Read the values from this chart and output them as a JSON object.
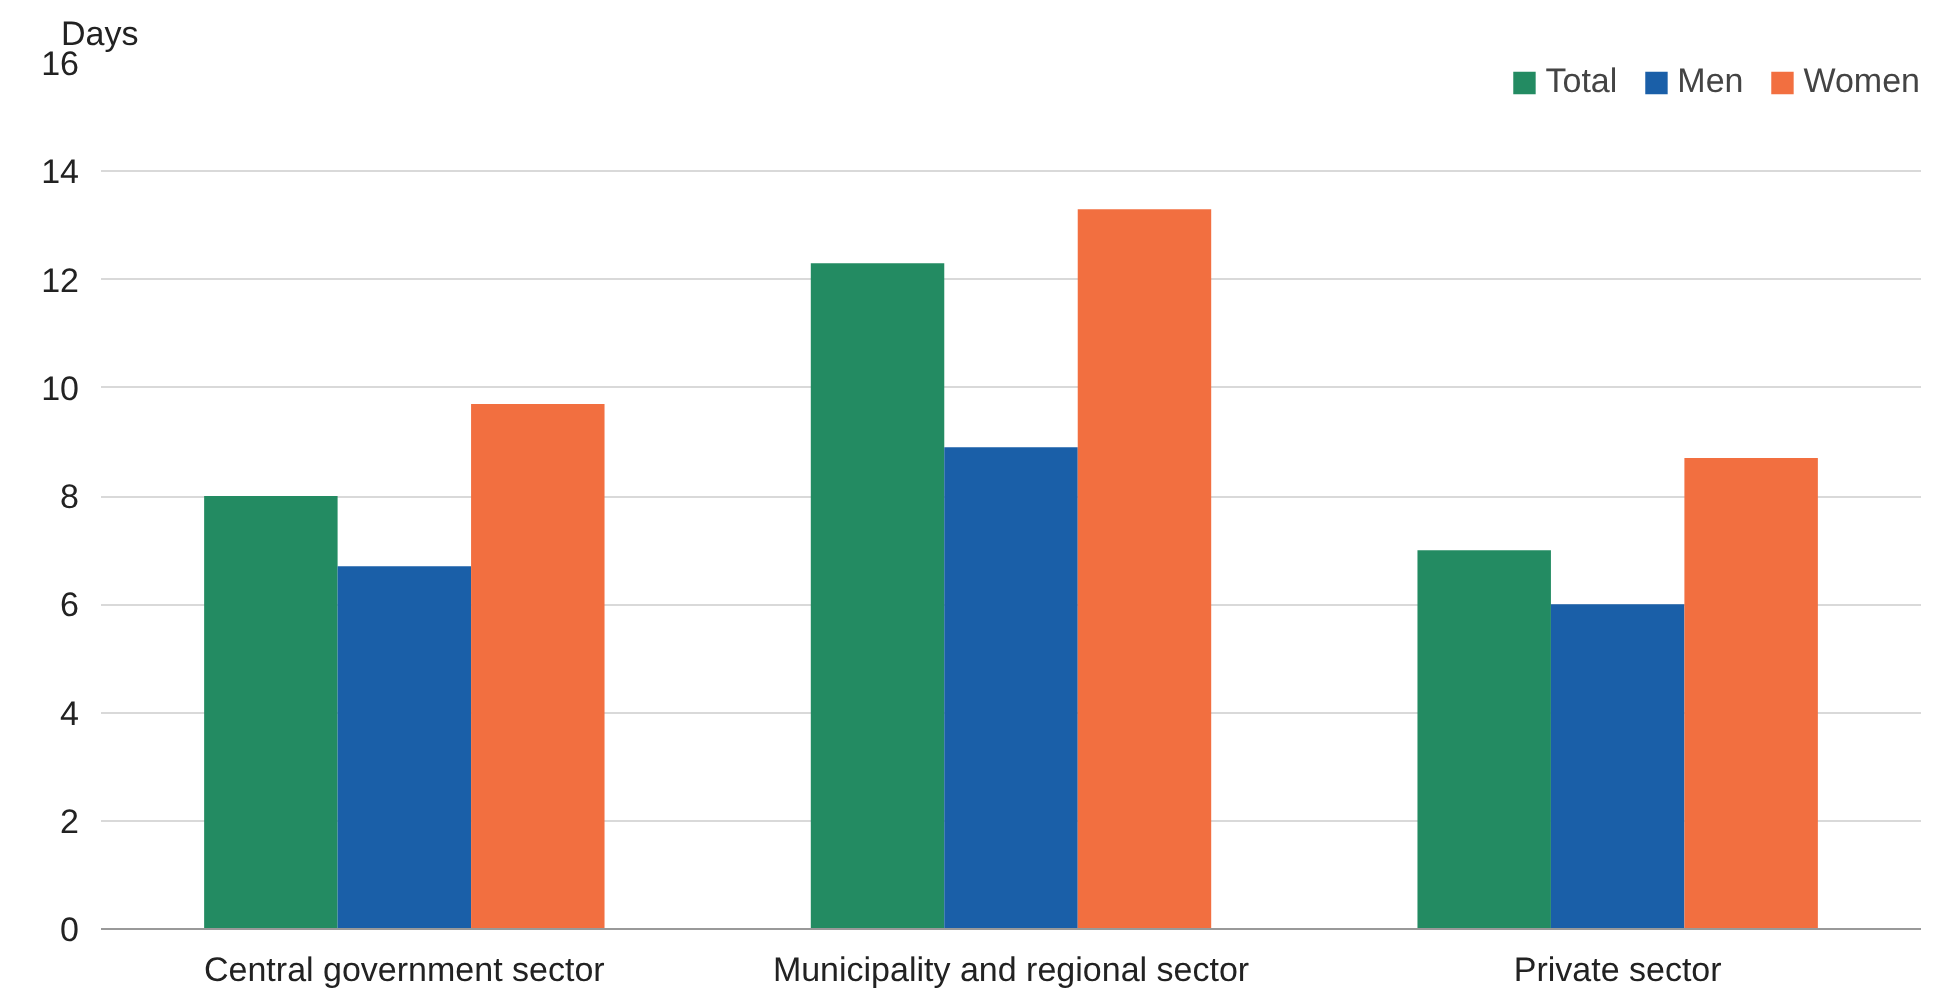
{
  "chart_data": {
    "type": "bar",
    "ylabel": "Days",
    "categories": [
      "Central government sector",
      "Municipality and regional sector",
      "Private sector"
    ],
    "series": [
      {
        "name": "Total",
        "color": "#238b62",
        "values": [
          8.0,
          12.3,
          7.0
        ]
      },
      {
        "name": "Men",
        "color": "#1a5fa8",
        "values": [
          6.7,
          8.9,
          6.0
        ]
      },
      {
        "name": "Women",
        "color": "#f26f40",
        "values": [
          9.7,
          13.3,
          8.7
        ]
      }
    ],
    "ylim": [
      0,
      16
    ],
    "yticks": [
      0,
      2,
      4,
      6,
      8,
      10,
      12,
      14,
      16
    ],
    "grid": "y",
    "legend": "top right"
  }
}
